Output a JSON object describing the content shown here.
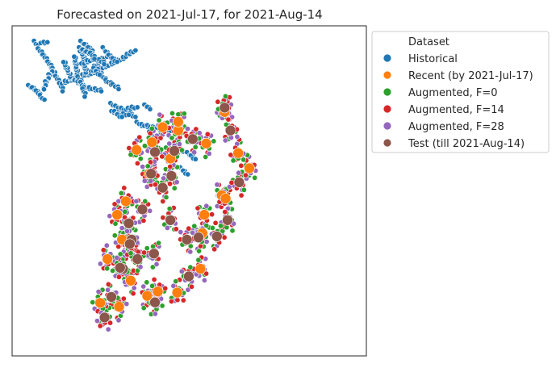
{
  "chart_data": {
    "type": "scatter",
    "title": "Forecasted on 2021-Jul-17, for 2021-Aug-14",
    "xlabel": "",
    "ylabel": "",
    "grid": false,
    "axis_ticks": false,
    "legend": {
      "title": "Dataset",
      "placement": "outside-right-top",
      "entries": [
        {
          "label": "Historical",
          "color": "#1f77b4"
        },
        {
          "label": "Recent  (by 2021-Jul-17)",
          "color": "#ff7f0e"
        },
        {
          "label": "Augmented, F=0",
          "color": "#2ca02c"
        },
        {
          "label": "Augmented, F=14",
          "color": "#d62728"
        },
        {
          "label": "Augmented, F=28",
          "color": "#9467bd"
        },
        {
          "label": "Test  (till 2021-Aug-14)",
          "color": "#8c564b"
        }
      ]
    },
    "series": [
      {
        "name": "Historical",
        "color": "#1f77b4",
        "marker_size": "small",
        "paths": [
          [
            [
              22,
              10
            ],
            [
              30,
              24
            ],
            [
              40,
              35
            ],
            [
              50,
              48
            ],
            [
              58,
              60
            ],
            [
              66,
              75
            ],
            [
              74,
              88
            ],
            [
              80,
              100
            ]
          ],
          [
            [
              60,
              60
            ],
            [
              52,
              72
            ],
            [
              45,
              85
            ],
            [
              40,
              98
            ]
          ],
          [
            [
              74,
              88
            ],
            [
              86,
              84
            ],
            [
              98,
              80
            ],
            [
              110,
              76
            ],
            [
              122,
              72
            ],
            [
              134,
              70
            ],
            [
              146,
              66
            ],
            [
              158,
              60
            ],
            [
              170,
              55
            ],
            [
              182,
              50
            ],
            [
              194,
              45
            ],
            [
              206,
              40
            ],
            [
              214,
              34
            ],
            [
              222,
              30
            ],
            [
              228,
              27
            ]
          ],
          [
            [
              100,
              78
            ],
            [
              112,
              85
            ],
            [
              124,
              92
            ],
            [
              136,
              96
            ],
            [
              148,
              98
            ],
            [
              160,
              100
            ]
          ],
          [
            [
              96,
              78
            ],
            [
              92,
              66
            ],
            [
              86,
              56
            ],
            [
              82,
              46
            ]
          ],
          [
            [
              110,
              72
            ],
            [
              108,
              60
            ],
            [
              106,
              48
            ],
            [
              104,
              36
            ]
          ],
          [
            [
              128,
              70
            ],
            [
              126,
              58
            ],
            [
              124,
              46
            ],
            [
              122,
              36
            ],
            [
              116,
              26
            ]
          ],
          [
            [
              140,
              66
            ],
            [
              146,
              56
            ],
            [
              154,
              48
            ],
            [
              162,
              42
            ],
            [
              172,
              36
            ]
          ],
          [
            [
              154,
              62
            ],
            [
              160,
              72
            ],
            [
              170,
              82
            ],
            [
              184,
              90
            ],
            [
              196,
              96
            ]
          ],
          [
            [
              112,
              76
            ],
            [
              118,
              86
            ],
            [
              122,
              98
            ],
            [
              126,
              110
            ]
          ],
          [
            [
              120,
              52
            ],
            [
              132,
              46
            ],
            [
              144,
              42
            ],
            [
              156,
              44
            ],
            [
              166,
              50
            ]
          ],
          [
            [
              118,
              10
            ],
            [
              126,
              16
            ],
            [
              134,
              22
            ],
            [
              142,
              30
            ]
          ],
          [
            [
              115,
              22
            ],
            [
              122,
              26
            ],
            [
              130,
              30
            ],
            [
              138,
              32
            ],
            [
              146,
              40
            ]
          ],
          [
            [
              10,
              92
            ],
            [
              18,
              96
            ],
            [
              26,
              102
            ],
            [
              34,
              110
            ],
            [
              40,
              118
            ]
          ],
          [
            [
              36,
              14
            ],
            [
              42,
              12
            ],
            [
              48,
              10
            ]
          ],
          [
            [
              164,
              22
            ],
            [
              170,
              30
            ],
            [
              176,
              36
            ],
            [
              184,
              42
            ],
            [
              190,
              48
            ]
          ],
          [
            [
              145,
              60
            ],
            [
              150,
              66
            ],
            [
              154,
              72
            ]
          ],
          [
            [
              180,
              125
            ],
            [
              190,
              130
            ],
            [
              202,
              134
            ],
            [
              212,
              138
            ],
            [
              220,
              144
            ],
            [
              228,
              150
            ]
          ],
          [
            [
              182,
              140
            ],
            [
              194,
              142
            ],
            [
              206,
              144
            ],
            [
              214,
              146
            ]
          ],
          [
            [
              234,
              160
            ],
            [
              244,
              164
            ],
            [
              256,
              166
            ],
            [
              268,
              168
            ],
            [
              280,
              170
            ],
            [
              290,
              174
            ]
          ],
          [
            [
              188,
              140
            ],
            [
              194,
              146
            ],
            [
              200,
              150
            ]
          ],
          [
            [
              278,
              172
            ],
            [
              286,
              178
            ]
          ],
          [
            [
              216,
              134
            ],
            [
              224,
              132
            ],
            [
              232,
              132
            ]
          ],
          [
            [
              260,
              178
            ],
            [
              264,
              182
            ],
            [
              268,
              186
            ]
          ],
          [
            [
              250,
              128
            ],
            [
              256,
              132
            ],
            [
              260,
              134
            ]
          ],
          [
            [
              270,
              170
            ],
            [
              278,
              166
            ],
            [
              286,
              164
            ],
            [
              294,
              170
            ],
            [
              300,
              176
            ]
          ],
          [
            [
              314,
              200
            ],
            [
              320,
              208
            ],
            [
              326,
              214
            ]
          ],
          [
            [
              338,
              216
            ],
            [
              346,
              222
            ],
            [
              352,
              228
            ]
          ],
          [
            [
              324,
              244
            ],
            [
              330,
              250
            ],
            [
              336,
              256
            ]
          ]
        ]
      },
      {
        "name": "Recent  (by 2021-Jul-17)",
        "color": "#ff7f0e",
        "marker_size": "large",
        "points": [
          [
            414,
            140
          ],
          [
            376,
            198
          ],
          [
            318,
            174
          ],
          [
            286,
            168
          ],
          [
            264,
            196
          ],
          [
            232,
            210
          ],
          [
            258,
            254
          ],
          [
            302,
            226
          ],
          [
            210,
            305
          ],
          [
            192,
            330
          ],
          [
            202,
            376
          ],
          [
            220,
            452
          ],
          [
            196,
            500
          ],
          [
            254,
            480
          ],
          [
            316,
            474
          ],
          [
            364,
            430
          ],
          [
            368,
            364
          ],
          [
            372,
            330
          ],
          [
            408,
            294
          ],
          [
            465,
            244
          ],
          [
            442,
            216
          ],
          [
            416,
            300
          ],
          [
            318,
            158
          ],
          [
            276,
            472
          ],
          [
            172,
            412
          ],
          [
            157,
            493
          ]
        ]
      },
      {
        "name": "Test  (till 2021-Aug-14)",
        "color": "#8c564b",
        "marker_size": "large",
        "points": [
          [
            414,
            132
          ],
          [
            348,
            190
          ],
          [
            310,
            212
          ],
          [
            270,
            214
          ],
          [
            262,
            254
          ],
          [
            304,
            258
          ],
          [
            286,
            280
          ],
          [
            244,
            320
          ],
          [
            216,
            346
          ],
          [
            222,
            376
          ],
          [
            204,
            430
          ],
          [
            268,
            402
          ],
          [
            234,
            412
          ],
          [
            218,
            384
          ],
          [
            198,
            428
          ],
          [
            302,
            340
          ],
          [
            336,
            376
          ],
          [
            360,
            372
          ],
          [
            398,
            370
          ],
          [
            426,
            174
          ],
          [
            420,
            340
          ],
          [
            444,
            270
          ],
          [
            340,
            444
          ],
          [
            270,
            492
          ],
          [
            180,
            482
          ],
          [
            166,
            520
          ]
        ]
      }
    ]
  }
}
